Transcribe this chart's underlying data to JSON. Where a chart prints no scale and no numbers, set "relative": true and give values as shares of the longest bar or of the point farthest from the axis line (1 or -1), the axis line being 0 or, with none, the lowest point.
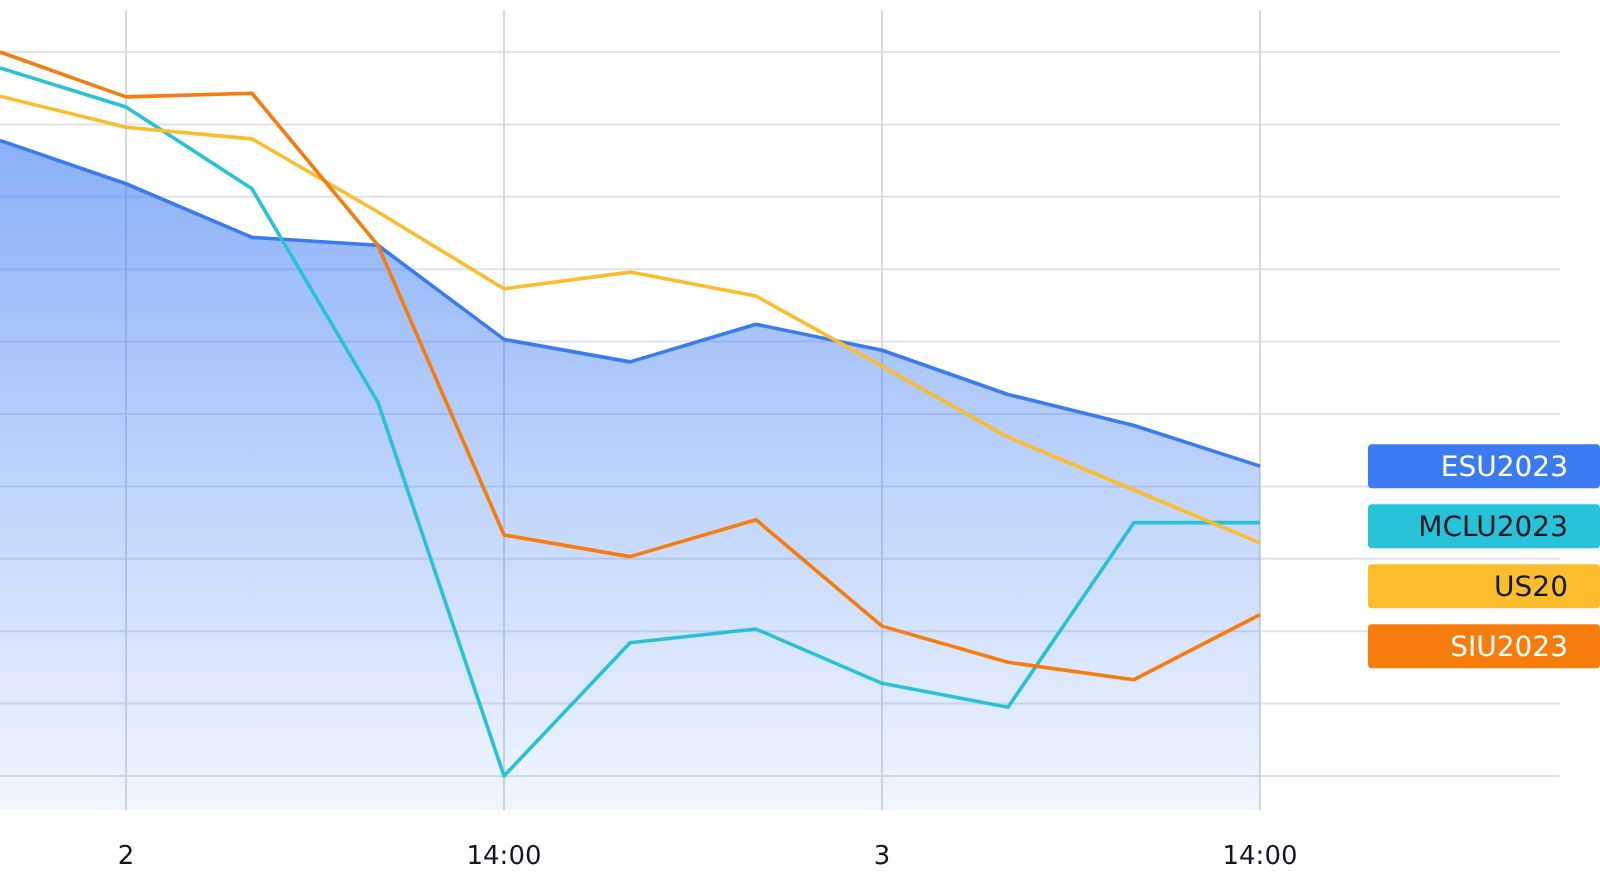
{
  "chart_data": {
    "type": "line",
    "relative": true,
    "grid": true,
    "legend": "right",
    "categories": [
      null,
      "2",
      null,
      null,
      "14:00",
      null,
      null,
      "3",
      null,
      null,
      "14:00"
    ],
    "series": [
      {
        "name": "ESU2023",
        "type": "area",
        "color": "#3b7bf2",
        "values": [
          0.878,
          0.818,
          0.744,
          0.733,
          0.603,
          0.572,
          0.624,
          0.588,
          0.527,
          0.484,
          0.428
        ]
      },
      {
        "name": "MCLU2023",
        "color": "#27c2d8",
        "values": [
          0.978,
          0.924,
          0.811,
          0.516,
          0,
          0.184,
          0.203,
          0.128,
          0.095,
          0.35,
          0.35
        ]
      },
      {
        "name": "US20",
        "color": "#fbbd2c",
        "values": [
          0.939,
          0.896,
          0.88,
          0.779,
          0.673,
          0.696,
          0.663,
          0.566,
          0.468,
          0.395,
          0.322
        ]
      },
      {
        "name": "SIU2023",
        "color": "#f57c0d",
        "values": [
          1,
          0.938,
          0.943,
          0.733,
          0.333,
          0.303,
          0.354,
          0.207,
          0.157,
          0.133,
          0.223
        ]
      }
    ]
  }
}
